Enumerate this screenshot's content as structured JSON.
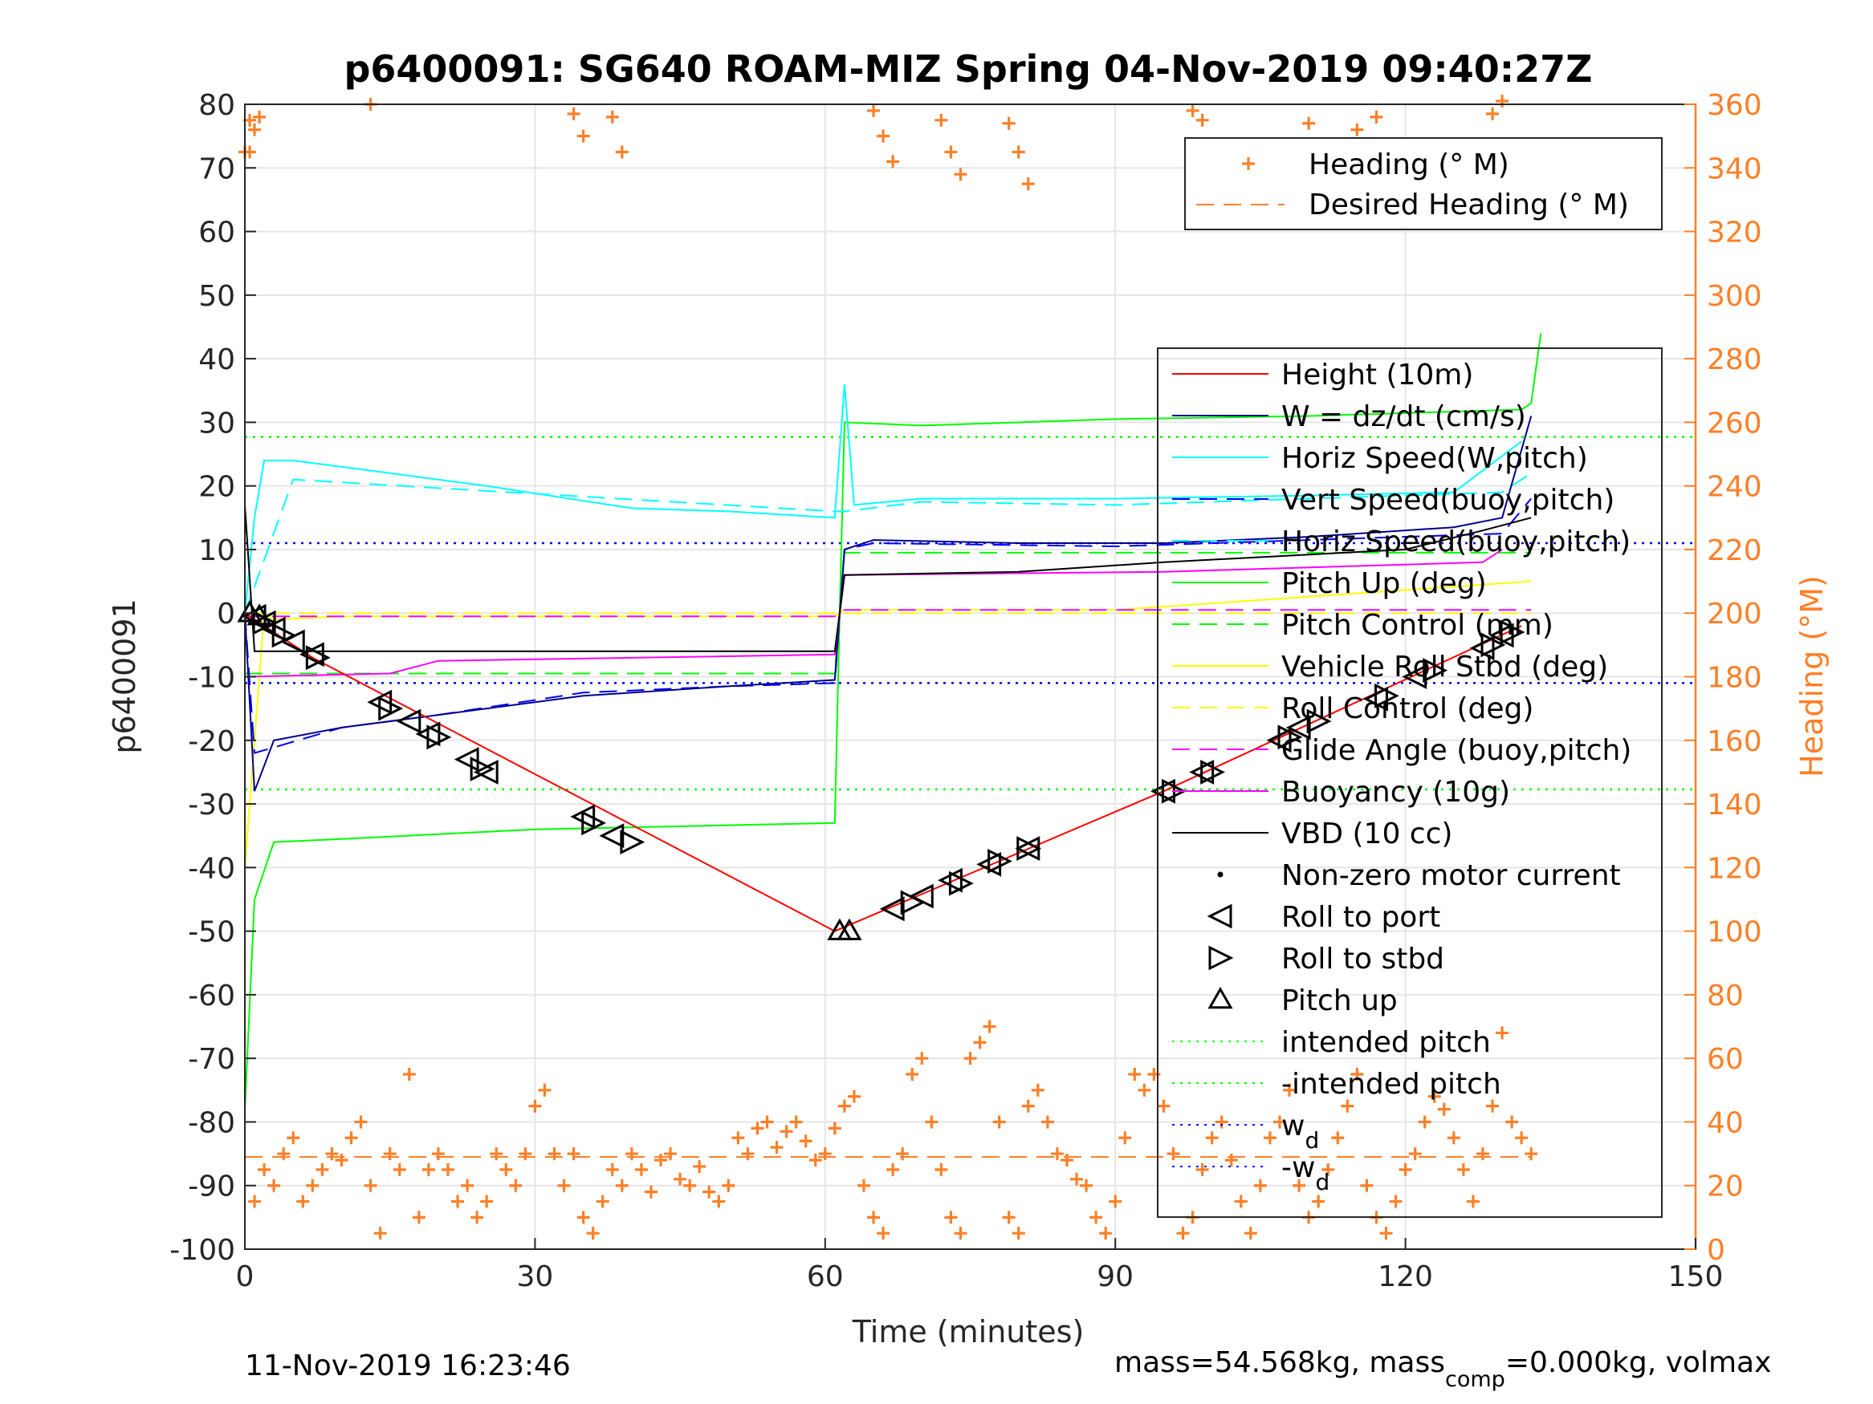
{
  "figure": {
    "title": "p6400091: SG640 ROAM-MIZ Spring 04-Nov-2019 09:40:27Z",
    "timestamp": "11-Nov-2019 16:23:46",
    "footer_prefix": "mass=54.568kg, mass",
    "footer_sub": "comp",
    "footer_suffix": "=0.000kg, volmax"
  },
  "colors": {
    "height": "#ff0000",
    "w": "#00008b",
    "horiz_speed_w": "#00ffff",
    "vert_speed_buoy": "#0000ff",
    "horiz_speed_buoy": "#00ffff",
    "pitch_up": "#00ff00",
    "pitch_control": "#00ff00",
    "roll": "#ffff00",
    "roll_control": "#ffff00",
    "glide_angle": "#ff00ff",
    "buoyancy": "#ff00ff",
    "vbd": "#000000",
    "heading": "#ff7f27",
    "right_axis": "#ff7f27"
  },
  "chart_data": {
    "type": "line",
    "xlabel": "Time (minutes)",
    "ylabel": "p6400091",
    "y2label": "Heading (°M)",
    "xlim": [
      0,
      150
    ],
    "ylim": [
      -100,
      80
    ],
    "y2lim": [
      0,
      360
    ],
    "xticks": [
      0,
      30,
      60,
      90,
      120,
      150
    ],
    "yticks": [
      80,
      70,
      60,
      50,
      40,
      30,
      20,
      10,
      0,
      -10,
      -20,
      -30,
      -40,
      -50,
      -60,
      -70,
      -80,
      -90,
      -100
    ],
    "y2ticks": [
      360,
      340,
      320,
      300,
      280,
      260,
      240,
      220,
      200,
      180,
      160,
      140,
      120,
      100,
      80,
      60,
      40,
      20,
      0
    ],
    "grid": true,
    "heading_legend": {
      "placement": "top-right",
      "entries": [
        "Heading (° M)",
        "Desired Heading (° M)"
      ]
    },
    "legend": {
      "placement": "right",
      "entries": [
        "Height (10m)",
        "W = dz/dt (cm/s)",
        "Horiz Speed(W,pitch)",
        "Vert Speed(buoy,pitch)",
        "Horiz Speed(buoy,pitch)",
        "Pitch Up (deg)",
        "Pitch Control (mm)",
        "Vehicle Roll Stbd (deg)",
        "Roll Control (deg)",
        "Glide Angle (buoy,pitch)",
        "Buoyancy (10g)",
        "VBD (10 cc)",
        "Non-zero motor current",
        "Roll to port",
        "Roll to stbd",
        "Pitch up",
        "intended pitch",
        "-intended pitch",
        "w",
        "-w"
      ],
      "subscript": "d"
    },
    "reference_lines": {
      "intended_pitch": 27.7,
      "w_d": 11
    },
    "series": [
      {
        "name": "Height (10m)",
        "x": [
          0,
          7,
          61,
          95,
          132
        ],
        "y": [
          0,
          -7,
          -50,
          -28,
          -2
        ]
      },
      {
        "name": "W = dz/dt (cm/s)",
        "x": [
          0,
          1,
          3,
          10,
          20,
          35,
          50,
          61,
          62,
          65,
          80,
          95,
          110,
          125,
          130,
          133
        ],
        "y": [
          0,
          -28,
          -20,
          -18,
          -16,
          -13,
          -11.5,
          -10.5,
          10,
          11.5,
          11,
          11,
          12,
          13.5,
          15,
          31
        ]
      },
      {
        "name": "Horiz Speed(W,pitch)",
        "x": [
          0,
          1,
          2,
          5,
          10,
          15,
          25,
          40,
          50,
          61,
          62,
          63,
          70,
          90,
          110,
          125,
          132
        ],
        "y": [
          0,
          15,
          24,
          24,
          23,
          22,
          20,
          16.5,
          16,
          15,
          36,
          17,
          18,
          18,
          18.5,
          19,
          27
        ]
      },
      {
        "name": "Vert Speed(buoy,pitch)",
        "x": [
          0,
          1,
          10,
          20,
          35,
          50,
          61,
          62,
          65,
          90,
          110,
          130,
          133
        ],
        "y": [
          0,
          -22,
          -18,
          -16,
          -12.5,
          -11.5,
          -11,
          10,
          11,
          10.5,
          11.5,
          12.5,
          18
        ]
      },
      {
        "name": "Horiz Speed(buoy,pitch)",
        "x": [
          0,
          5,
          61,
          62,
          70,
          90,
          110,
          130,
          133
        ],
        "y": [
          0,
          21,
          16,
          16,
          17.5,
          17,
          18,
          19,
          22
        ]
      },
      {
        "name": "Pitch Up (deg)",
        "x": [
          0,
          1,
          3,
          10,
          30,
          61,
          61.5,
          62,
          70,
          90,
          110,
          132,
          133,
          134
        ],
        "y": [
          -78,
          -45,
          -36,
          -35.5,
          -34,
          -33,
          0,
          30,
          29.5,
          30.5,
          31,
          32,
          33,
          44
        ]
      },
      {
        "name": "Pitch Control (mm)",
        "x": [
          0,
          61,
          62,
          133
        ],
        "y": [
          -9.5,
          -9.5,
          9.5,
          9.5
        ]
      },
      {
        "name": "Vehicle Roll Stbd (deg)",
        "x": [
          0,
          2,
          3,
          10,
          30,
          61,
          62,
          90,
          133
        ],
        "y": [
          -40,
          0,
          -1,
          -0.5,
          -0.5,
          -0.5,
          0.5,
          0.5,
          5
        ]
      },
      {
        "name": "Roll Control (deg)",
        "x": [
          0,
          133
        ],
        "y": [
          0,
          0
        ]
      },
      {
        "name": "Glide Angle (buoy,pitch)",
        "x": [
          0,
          61,
          62,
          133
        ],
        "y": [
          -0.5,
          -0.5,
          0.5,
          0.5
        ]
      },
      {
        "name": "Buoyancy (10g)",
        "x": [
          0,
          15,
          20,
          61,
          62,
          95,
          128,
          130
        ],
        "y": [
          -10,
          -9.5,
          -7.5,
          -6.5,
          6,
          6.5,
          8,
          10
        ]
      },
      {
        "name": "VBD (10 cc)",
        "x": [
          0,
          1,
          61,
          62,
          80,
          95,
          120,
          128,
          133
        ],
        "y": [
          17,
          -6,
          -6,
          6,
          6.5,
          8,
          10,
          13,
          15
        ]
      },
      {
        "name": "Roll to port",
        "x": [
          1,
          2,
          3,
          5,
          7,
          14,
          17,
          19,
          23,
          25,
          35,
          38,
          67,
          70,
          73,
          77,
          81,
          95,
          99,
          107,
          109,
          117,
          121,
          128,
          130
        ],
        "y": [
          -0.5,
          -1.5,
          -2.5,
          -4.5,
          -6.5,
          -14,
          -17,
          -19,
          -23,
          -25,
          -32,
          -35,
          -46.5,
          -44.5,
          -42,
          -39.5,
          -37,
          -28,
          -25,
          -20,
          -18,
          -13.5,
          -10,
          -5.5,
          -3.5
        ]
      },
      {
        "name": "Roll to stbd",
        "x": [
          2,
          4,
          7.5,
          15,
          20,
          24.5,
          36,
          40,
          69,
          74,
          78,
          81,
          96,
          100,
          108,
          111,
          118,
          123,
          129,
          131
        ],
        "y": [
          -1.5,
          -3.5,
          -7,
          -15,
          -19.5,
          -24.5,
          -33,
          -36,
          -45.5,
          -42.5,
          -39,
          -37,
          -28,
          -25,
          -19.5,
          -17,
          -13,
          -9,
          -5,
          -3
        ]
      },
      {
        "name": "Pitch up",
        "x": [
          0.5,
          1.5,
          61.5,
          62.5
        ],
        "y": [
          0,
          -0.5,
          -50,
          -50
        ]
      },
      {
        "name": "Heading (° M)",
        "axis": "right",
        "x": [
          0,
          0.5,
          1,
          2,
          3,
          4,
          5,
          6,
          7,
          8,
          9,
          10,
          11,
          12,
          13,
          14,
          15,
          16,
          17,
          18,
          19,
          20,
          21,
          22,
          23,
          24,
          25,
          26,
          27,
          28,
          29,
          30,
          31,
          32,
          33,
          34,
          35,
          36,
          37,
          38,
          39,
          40,
          41,
          42,
          43,
          44,
          45,
          46,
          47,
          48,
          49,
          50,
          51,
          52,
          53,
          54,
          55,
          56,
          57,
          58,
          59,
          60,
          61,
          62,
          63,
          64,
          65,
          66,
          67,
          68,
          69,
          70,
          71,
          72,
          73,
          74,
          75,
          76,
          77,
          78,
          79,
          80,
          81,
          82,
          83,
          84,
          85,
          86,
          87,
          88,
          89,
          90,
          91,
          92,
          93,
          94,
          95,
          96,
          97,
          98,
          99,
          100,
          101,
          102,
          103,
          104,
          105,
          106,
          107,
          108,
          109,
          110,
          111,
          112,
          113,
          114,
          115,
          116,
          117,
          118,
          119,
          120,
          121,
          122,
          123,
          124,
          125,
          126,
          127,
          128,
          129,
          130,
          131,
          132,
          133
        ],
        "y": [
          345,
          355,
          15,
          25,
          20,
          30,
          35,
          15,
          20,
          25,
          30,
          28,
          35,
          40,
          20,
          5,
          30,
          25,
          55,
          10,
          25,
          30,
          25,
          15,
          20,
          10,
          15,
          30,
          25,
          20,
          30,
          45,
          50,
          30,
          20,
          30,
          10,
          5,
          15,
          25,
          20,
          30,
          25,
          18,
          28,
          30,
          22,
          20,
          26,
          18,
          15,
          20,
          35,
          30,
          38,
          40,
          32,
          37,
          40,
          34,
          28,
          30,
          38,
          45,
          48,
          20,
          10,
          5,
          25,
          30,
          55,
          60,
          40,
          25,
          10,
          5,
          60,
          65,
          70,
          40,
          10,
          5,
          45,
          50,
          40,
          30,
          28,
          22,
          20,
          10,
          5,
          15,
          35,
          55,
          50,
          55,
          45,
          30,
          5,
          10,
          25,
          35,
          40,
          28,
          15,
          5,
          20,
          35,
          40,
          50,
          20,
          10,
          15,
          25,
          35,
          45,
          55,
          20,
          10,
          5,
          15,
          25,
          30,
          40,
          48,
          44,
          35,
          25,
          15,
          30,
          45,
          68,
          40,
          35,
          30
        ]
      },
      {
        "name": "Heading (° M) near 360",
        "axis": "right",
        "x": [
          0.5,
          1,
          1.5,
          13,
          34,
          35,
          38,
          39,
          65,
          66,
          67,
          72,
          73,
          74,
          79,
          80,
          81,
          98,
          99,
          110,
          111,
          115,
          116,
          117,
          129,
          130
        ],
        "y": [
          345,
          352,
          356,
          360,
          357,
          350,
          356,
          345,
          358,
          350,
          342,
          355,
          345,
          338,
          354,
          345,
          335,
          358,
          355,
          354,
          345,
          352,
          340,
          356,
          357,
          361
        ]
      },
      {
        "name": "Desired Heading (° M)",
        "axis": "right",
        "x": [
          0,
          133
        ],
        "y": [
          29,
          29
        ]
      }
    ]
  }
}
